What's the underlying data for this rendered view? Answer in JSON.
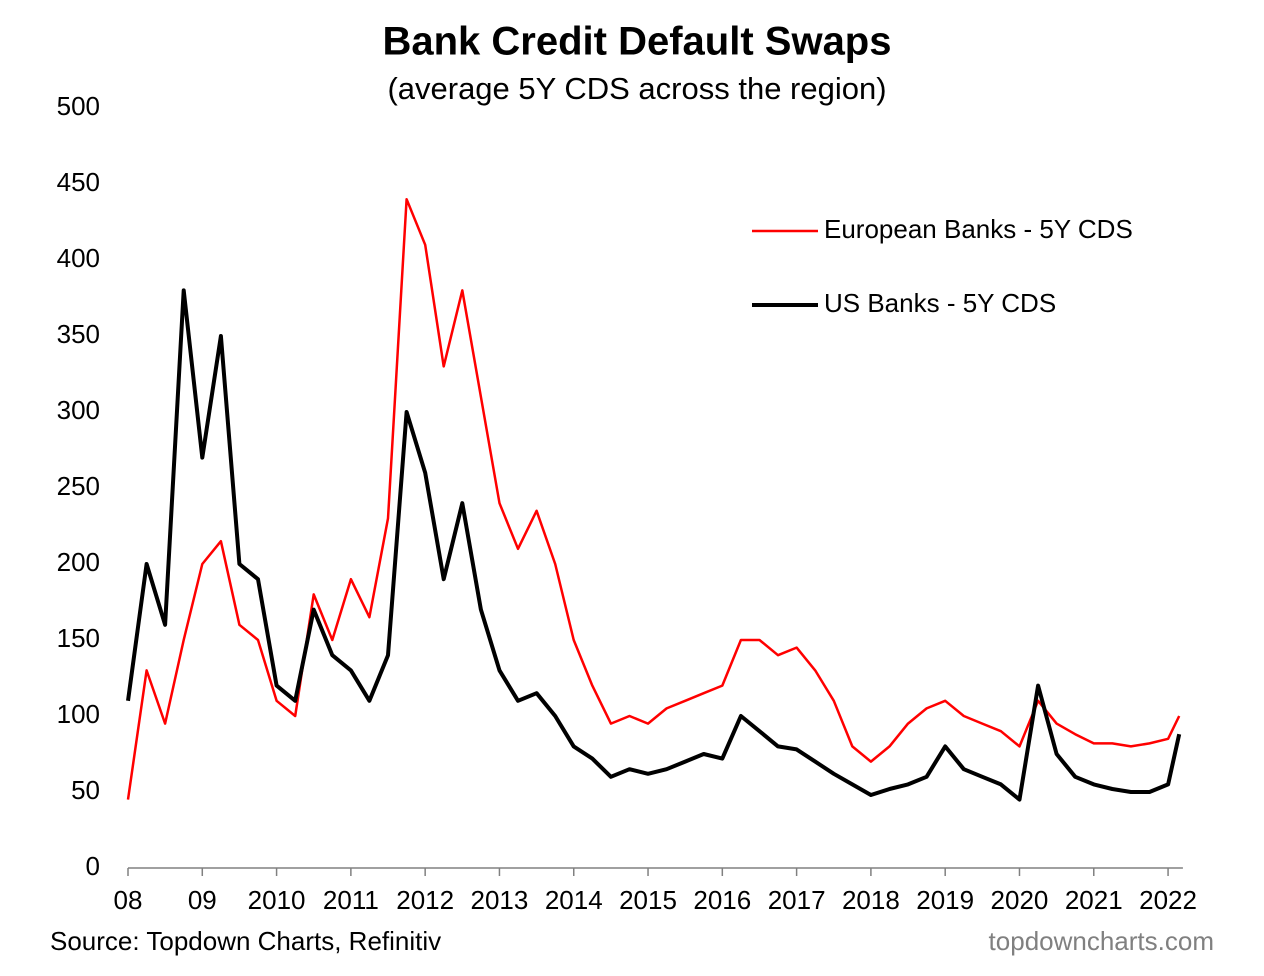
{
  "chart_data": {
    "type": "line",
    "title": "Bank Credit Default Swaps",
    "subtitle": "(average 5Y CDS across the region)",
    "source": "Source: Topdown Charts, Refinitiv",
    "watermark": "topdowncharts.com",
    "x": [
      2008,
      2008.25,
      2008.5,
      2008.75,
      2009,
      2009.25,
      2009.5,
      2009.75,
      2010,
      2010.25,
      2010.5,
      2010.75,
      2011,
      2011.25,
      2011.5,
      2011.75,
      2012,
      2012.25,
      2012.5,
      2012.75,
      2013,
      2013.25,
      2013.5,
      2013.75,
      2014,
      2014.25,
      2014.5,
      2014.75,
      2015,
      2015.25,
      2015.5,
      2015.75,
      2016,
      2016.25,
      2016.5,
      2016.75,
      2017,
      2017.25,
      2017.5,
      2017.75,
      2018,
      2018.25,
      2018.5,
      2018.75,
      2019,
      2019.25,
      2019.5,
      2019.75,
      2020,
      2020.25,
      2020.5,
      2020.75,
      2021,
      2021.25,
      2021.5,
      2021.75,
      2022,
      2022.15
    ],
    "series": [
      {
        "name": "European Banks - 5Y CDS",
        "color": "#ff0000",
        "values": [
          45,
          130,
          95,
          150,
          200,
          215,
          160,
          150,
          110,
          100,
          180,
          150,
          190,
          165,
          230,
          440,
          410,
          330,
          380,
          310,
          240,
          210,
          235,
          200,
          150,
          120,
          95,
          100,
          95,
          105,
          110,
          115,
          120,
          150,
          150,
          140,
          145,
          130,
          110,
          80,
          70,
          80,
          95,
          105,
          110,
          100,
          95,
          90,
          80,
          110,
          95,
          88,
          82,
          82,
          80,
          82,
          85,
          100
        ]
      },
      {
        "name": "US Banks - 5Y CDS",
        "color": "#000000",
        "values": [
          110,
          200,
          160,
          380,
          270,
          350,
          200,
          190,
          120,
          110,
          170,
          140,
          130,
          110,
          140,
          300,
          260,
          190,
          240,
          170,
          130,
          110,
          115,
          100,
          80,
          72,
          60,
          65,
          62,
          65,
          70,
          75,
          72,
          100,
          90,
          80,
          78,
          70,
          62,
          55,
          48,
          52,
          55,
          60,
          80,
          65,
          60,
          55,
          45,
          120,
          75,
          60,
          55,
          52,
          50,
          50,
          55,
          88
        ]
      }
    ],
    "xlim": [
      2008,
      2022.2
    ],
    "xticks": [
      {
        "value": 2008,
        "label": "08"
      },
      {
        "value": 2009,
        "label": "09"
      },
      2010,
      2011,
      2012,
      2013,
      2014,
      2015,
      2016,
      2017,
      2018,
      2019,
      2020,
      2021,
      2022
    ],
    "ylim": [
      0,
      500
    ],
    "yticks": [
      0,
      50,
      100,
      150,
      200,
      250,
      300,
      350,
      400,
      450,
      500
    ],
    "grid": false,
    "legend": "upper right"
  }
}
